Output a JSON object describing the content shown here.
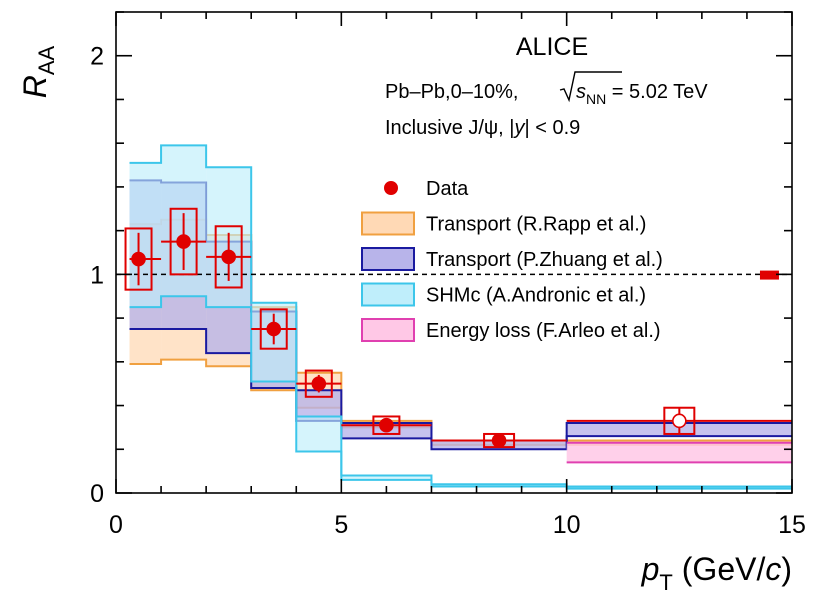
{
  "chart_data": {
    "type": "scatter",
    "title": "",
    "header": {
      "experiment": "ALICE",
      "system_prefix": "Pb–Pb,0–10%, ",
      "sqrt_s": "s",
      "sqrt_s_sub": "NN",
      "energy": " = 5.02 TeV",
      "particle": "Inclusive J/ψ, |",
      "rapidity_var": "y",
      "rapidity_cut": "| < 0.9"
    },
    "xlabel": {
      "var": "p",
      "sub": "T",
      "unit_open": " (GeV/",
      "unit_var": "c",
      "unit_close": ")"
    },
    "ylabel": {
      "var": "R",
      "sub": "AA"
    },
    "xlim": [
      0,
      15
    ],
    "ylim": [
      0,
      2.2
    ],
    "x_ticks": [
      0,
      5,
      10,
      15
    ],
    "y_ticks": [
      0,
      1,
      2
    ],
    "x_minor_step": 1,
    "y_minor_step": 0.2,
    "reference_line": 1,
    "global_uncertainty": {
      "x": 14.5,
      "low": 0.985,
      "high": 1.015,
      "color": "#e00000"
    },
    "data_series": {
      "name": "Data",
      "color": "#e00000",
      "points": [
        {
          "x": 0.5,
          "xmin": 0.3,
          "xmax": 1,
          "y": 1.07,
          "stat": 0.12,
          "syst": 0.14,
          "hollow": false
        },
        {
          "x": 1.5,
          "xmin": 1,
          "xmax": 2,
          "y": 1.15,
          "stat": 0.13,
          "syst": 0.15,
          "hollow": false
        },
        {
          "x": 2.5,
          "xmin": 2,
          "xmax": 3,
          "y": 1.08,
          "stat": 0.11,
          "syst": 0.14,
          "hollow": false
        },
        {
          "x": 3.5,
          "xmin": 3,
          "xmax": 4,
          "y": 0.75,
          "stat": 0.07,
          "syst": 0.09,
          "hollow": false
        },
        {
          "x": 4.5,
          "xmin": 4,
          "xmax": 5,
          "y": 0.5,
          "stat": 0.04,
          "syst": 0.06,
          "hollow": false
        },
        {
          "x": 6,
          "xmin": 5,
          "xmax": 7,
          "y": 0.31,
          "stat": 0.025,
          "syst": 0.04,
          "hollow": false
        },
        {
          "x": 8.5,
          "xmin": 7,
          "xmax": 10,
          "y": 0.24,
          "stat": 0.03,
          "syst": 0.03,
          "hollow": false
        },
        {
          "x": 12.5,
          "xmin": 10,
          "xmax": 15,
          "y": 0.33,
          "stat": 0.06,
          "syst": 0.06,
          "hollow": true
        }
      ]
    },
    "models": [
      {
        "name": "Transport (R.Rapp et al.)",
        "fill": "#ffd9b5",
        "fill_opacity": 0.75,
        "stroke": "#f0a040",
        "bins": [
          {
            "xmin": 0.3,
            "xmax": 1,
            "low": 0.59,
            "high": 1.23
          },
          {
            "xmin": 1,
            "xmax": 2,
            "low": 0.61,
            "high": 1.25
          },
          {
            "xmin": 2,
            "xmax": 3,
            "low": 0.58,
            "high": 1.18
          },
          {
            "xmin": 3,
            "xmax": 4,
            "low": 0.47,
            "high": 0.85
          },
          {
            "xmin": 4,
            "xmax": 5,
            "low": 0.39,
            "high": 0.55
          },
          {
            "xmin": 5,
            "xmax": 7,
            "low": 0.3,
            "high": 0.33
          },
          {
            "xmin": 7,
            "xmax": 10,
            "low": 0.22,
            "high": 0.24
          },
          {
            "xmin": 10,
            "xmax": 15,
            "low": 0.22,
            "high": 0.24
          }
        ]
      },
      {
        "name": "Transport (P.Zhuang et al.)",
        "fill": "#b8b4ea",
        "fill_opacity": 0.8,
        "stroke": "#1a1aa0",
        "bins": [
          {
            "xmin": 0.3,
            "xmax": 1,
            "low": 0.75,
            "high": 1.43
          },
          {
            "xmin": 1,
            "xmax": 2,
            "low": 0.75,
            "high": 1.42
          },
          {
            "xmin": 2,
            "xmax": 3,
            "low": 0.64,
            "high": 1.15
          },
          {
            "xmin": 3,
            "xmax": 4,
            "low": 0.48,
            "high": 0.83
          },
          {
            "xmin": 4,
            "xmax": 5,
            "low": 0.33,
            "high": 0.47
          },
          {
            "xmin": 5,
            "xmax": 7,
            "low": 0.25,
            "high": 0.32
          },
          {
            "xmin": 7,
            "xmax": 10,
            "low": 0.2,
            "high": 0.24
          },
          {
            "xmin": 10,
            "xmax": 15,
            "low": 0.26,
            "high": 0.32
          }
        ]
      },
      {
        "name": "SHMc (A.Andronic et al.)",
        "fill": "#bfeefb",
        "fill_opacity": 0.65,
        "stroke": "#3cc6ea",
        "bins": [
          {
            "xmin": 0.3,
            "xmax": 1,
            "low": 0.85,
            "high": 1.51
          },
          {
            "xmin": 1,
            "xmax": 2,
            "low": 0.9,
            "high": 1.59
          },
          {
            "xmin": 2,
            "xmax": 3,
            "low": 0.85,
            "high": 1.49
          },
          {
            "xmin": 3,
            "xmax": 4,
            "low": 0.51,
            "high": 0.87
          },
          {
            "xmin": 4,
            "xmax": 5,
            "low": 0.19,
            "high": 0.35
          },
          {
            "xmin": 5,
            "xmax": 7,
            "low": 0.06,
            "high": 0.08
          },
          {
            "xmin": 7,
            "xmax": 10,
            "low": 0.03,
            "high": 0.04
          },
          {
            "xmin": 10,
            "xmax": 15,
            "low": 0.02,
            "high": 0.03
          }
        ]
      },
      {
        "name": "Energy loss (F.Arleo et al.)",
        "fill": "#ffc8e6",
        "fill_opacity": 0.85,
        "stroke": "#e040b0",
        "bins": [
          {
            "xmin": 10,
            "xmax": 15,
            "low": 0.14,
            "high": 0.23
          }
        ]
      }
    ],
    "legend": {
      "placement": "right-center",
      "entries": [
        {
          "label": "Data",
          "kind": "marker",
          "color": "#e00000"
        },
        {
          "label": "Transport (R.Rapp et al.)",
          "kind": "box",
          "fill": "#ffd9b5",
          "stroke": "#f0a040"
        },
        {
          "label": "Transport (P.Zhuang et al.)",
          "kind": "box",
          "fill": "#b8b4ea",
          "stroke": "#1a1aa0"
        },
        {
          "label": "SHMc (A.Andronic et al.)",
          "kind": "box",
          "fill": "#bfeefb",
          "stroke": "#3cc6ea"
        },
        {
          "label": "Energy loss (F.Arleo et al.)",
          "kind": "box",
          "fill": "#ffc8e6",
          "stroke": "#e040b0"
        }
      ]
    }
  }
}
